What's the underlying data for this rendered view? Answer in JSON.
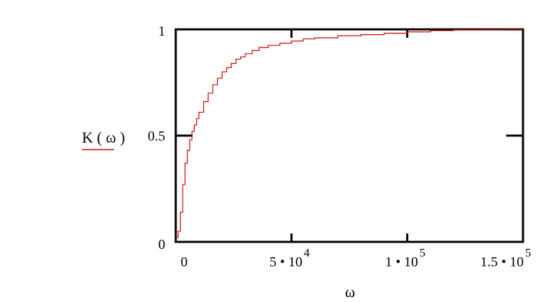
{
  "chart_data": {
    "type": "line",
    "line_style": "step",
    "xlabel": "ω",
    "ylabel": "",
    "xlim": [
      0,
      150000
    ],
    "ylim": [
      0,
      1
    ],
    "grid": false,
    "legend_position": "left",
    "legend_label": "K ( ω )",
    "x_ticks": [
      {
        "value": 0,
        "mantissa": "0",
        "exponent": ""
      },
      {
        "value": 50000,
        "mantissa": "5 • 10",
        "exponent": "4"
      },
      {
        "value": 100000,
        "mantissa": "1 • 10",
        "exponent": "5"
      },
      {
        "value": 150000,
        "mantissa": "1.5 • 10",
        "exponent": "5"
      }
    ],
    "y_ticks": [
      {
        "value": 0,
        "label": "0"
      },
      {
        "value": 0.5,
        "label": "0.5"
      },
      {
        "value": 1,
        "label": "1"
      }
    ],
    "series": [
      {
        "name": "K ( ω )",
        "color": "#cc0000",
        "x": [
          0,
          1000,
          2000,
          3000,
          4000,
          5000,
          6000,
          7000,
          8000,
          9000,
          10000,
          12000,
          14000,
          16000,
          18000,
          20000,
          22000,
          24000,
          26000,
          28000,
          30000,
          33000,
          36000,
          40000,
          45000,
          50000,
          55000,
          60000,
          70000,
          80000,
          90000,
          100000,
          110000,
          120000,
          130000,
          140000,
          150000
        ],
        "values": [
          0.02,
          0.05,
          0.14,
          0.27,
          0.37,
          0.43,
          0.48,
          0.52,
          0.55,
          0.58,
          0.61,
          0.66,
          0.7,
          0.74,
          0.77,
          0.8,
          0.82,
          0.84,
          0.86,
          0.87,
          0.885,
          0.9,
          0.915,
          0.925,
          0.935,
          0.945,
          0.955,
          0.96,
          0.97,
          0.975,
          0.982,
          0.988,
          0.994,
          0.997,
          0.998,
          0.999,
          1.0
        ]
      }
    ]
  }
}
